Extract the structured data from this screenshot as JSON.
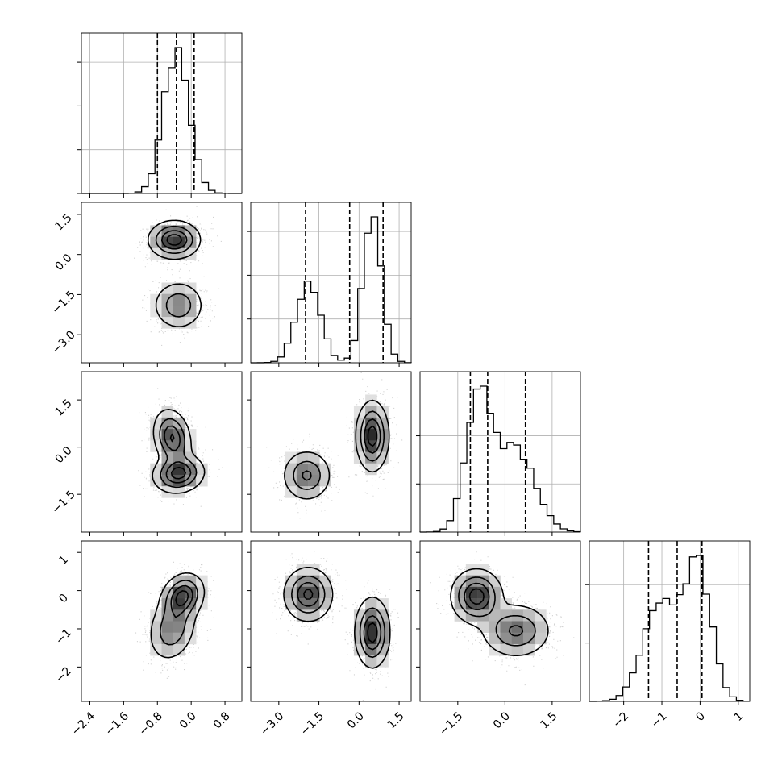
{
  "chart_data": {
    "type": "corner",
    "grid": true,
    "colors": {
      "ink": "#000000",
      "grid": "#b0b0b0",
      "scatter": "#9a9a9a"
    },
    "params": [
      {
        "range": [
          -2.6,
          1.2
        ],
        "ticks": [
          "-2.4",
          "-1.6",
          "-0.8",
          "0.0",
          "0.8"
        ],
        "tick_values": [
          -2.4,
          -1.6,
          -0.8,
          0.0,
          0.8
        ],
        "quantiles": [
          -0.8,
          -0.35,
          0.07
        ],
        "components": [
          {
            "mu": -0.35,
            "sd": 0.3,
            "w": 1.0
          }
        ],
        "hist_grid_fractions": [
          0.3,
          0.6,
          0.9
        ]
      },
      {
        "range": [
          -4.05,
          1.95
        ],
        "ticks": [
          "-3.0",
          "-1.5",
          "0.0",
          "1.5"
        ],
        "tick_values": [
          -3.0,
          -1.5,
          0.0,
          1.5
        ],
        "quantiles": [
          -2.0,
          -0.35,
          0.9
        ],
        "components": [
          {
            "mu": -1.9,
            "sd": 0.45,
            "w": 0.42
          },
          {
            "mu": 0.5,
            "sd": 0.35,
            "w": 0.58
          }
        ],
        "hist_grid_fractions": [
          0.3,
          0.6,
          0.9
        ]
      },
      {
        "range": [
          -2.7,
          2.4
        ],
        "ticks": [
          "-1.5",
          "0.0",
          "1.5"
        ],
        "tick_values": [
          -1.5,
          0.0,
          1.5
        ],
        "quantiles": [
          -1.1,
          -0.55,
          0.65
        ],
        "components": [
          {
            "mu": -0.85,
            "sd": 0.4,
            "w": 0.52
          },
          {
            "mu": 0.35,
            "sd": 0.6,
            "w": 0.48
          }
        ],
        "hist_grid_fractions": [
          0.33,
          0.66
        ]
      },
      {
        "range": [
          -2.9,
          1.3
        ],
        "ticks": [
          "-2",
          "-1",
          "0",
          "1"
        ],
        "tick_values": [
          -2,
          -1,
          0,
          1
        ],
        "quantiles": [
          -1.35,
          -0.6,
          0.05
        ],
        "components": [
          {
            "mu": -1.05,
            "sd": 0.45,
            "w": 0.48
          },
          {
            "mu": -0.05,
            "sd": 0.35,
            "w": 0.52
          }
        ],
        "hist_grid_fractions": [
          0.4,
          0.8
        ]
      }
    ],
    "pairs": [
      {
        "row": 1,
        "col": 0,
        "blobs": [
          {
            "cx": -0.4,
            "cy": 0.55,
            "sx": 0.3,
            "sy": 0.35,
            "r": 0,
            "w": 0.58
          },
          {
            "cx": -0.3,
            "cy": -1.9,
            "sx": 0.3,
            "sy": 0.45,
            "r": 0,
            "w": 0.42
          }
        ]
      },
      {
        "row": 2,
        "col": 0,
        "blobs": [
          {
            "cx": -0.45,
            "cy": 0.3,
            "sx": 0.22,
            "sy": 0.45,
            "r": -0.2,
            "w": 0.5
          },
          {
            "cx": -0.3,
            "cy": -0.85,
            "sx": 0.3,
            "sy": 0.3,
            "r": 0.1,
            "w": 0.5
          }
        ]
      },
      {
        "row": 2,
        "col": 1,
        "blobs": [
          {
            "cx": -1.95,
            "cy": -0.9,
            "sx": 0.45,
            "sy": 0.4,
            "r": 0,
            "w": 0.42
          },
          {
            "cx": 0.5,
            "cy": 0.35,
            "sx": 0.3,
            "sy": 0.55,
            "r": 0,
            "w": 0.58
          }
        ]
      },
      {
        "row": 3,
        "col": 0,
        "blobs": [
          {
            "cx": -0.2,
            "cy": -0.15,
            "sx": 0.25,
            "sy": 0.3,
            "r": 0.2,
            "w": 0.5
          },
          {
            "cx": -0.45,
            "cy": -1.0,
            "sx": 0.28,
            "sy": 0.42,
            "r": 0.2,
            "w": 0.5
          }
        ]
      },
      {
        "row": 3,
        "col": 1,
        "blobs": [
          {
            "cx": -1.9,
            "cy": -0.1,
            "sx": 0.45,
            "sy": 0.35,
            "r": 0,
            "w": 0.5
          },
          {
            "cx": 0.5,
            "cy": -1.1,
            "sx": 0.32,
            "sy": 0.45,
            "r": 0,
            "w": 0.5
          }
        ]
      },
      {
        "row": 3,
        "col": 2,
        "blobs": [
          {
            "cx": -0.9,
            "cy": -0.15,
            "sx": 0.4,
            "sy": 0.35,
            "r": 0,
            "w": 0.52
          },
          {
            "cx": 0.35,
            "cy": -1.05,
            "sx": 0.55,
            "sy": 0.35,
            "r": 0,
            "w": 0.48
          }
        ]
      }
    ]
  }
}
